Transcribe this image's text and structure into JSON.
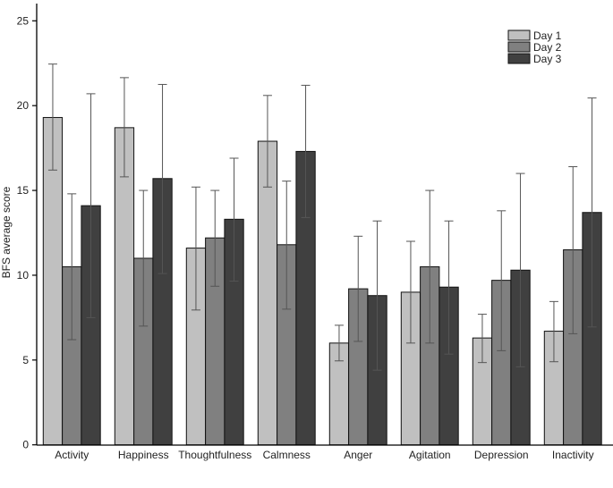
{
  "chart_data": {
    "type": "bar",
    "title": "",
    "xlabel": "",
    "ylabel": "BFS average score",
    "ylim": [
      0,
      25
    ],
    "yticks": [
      "0",
      "5",
      "10",
      "15",
      "20",
      "25"
    ],
    "grid": false,
    "legend_position": "top-right",
    "categories": [
      "Activity",
      "Happiness",
      "Thoughtfulness",
      "Calmness",
      "Anger",
      "Agitation",
      "Depression",
      "Inactivity"
    ],
    "series": [
      {
        "name": "Day 1",
        "color": "#c0c0c0",
        "values": [
          19.3,
          18.7,
          11.6,
          17.9,
          6.0,
          9.0,
          6.3,
          6.7
        ],
        "err_low": [
          16.2,
          15.8,
          7.95,
          15.2,
          4.95,
          6.0,
          4.85,
          4.9
        ],
        "err_high": [
          22.45,
          21.65,
          15.2,
          20.6,
          7.05,
          12.0,
          7.7,
          8.45
        ]
      },
      {
        "name": "Day 2",
        "color": "#808080",
        "values": [
          10.5,
          11.0,
          12.2,
          11.8,
          9.2,
          10.5,
          9.7,
          11.5
        ],
        "err_low": [
          6.2,
          7.0,
          9.35,
          8.0,
          6.1,
          6.0,
          5.55,
          6.55
        ],
        "err_high": [
          14.8,
          15.0,
          15.0,
          15.55,
          12.3,
          15.0,
          13.8,
          16.4
        ]
      },
      {
        "name": "Day 3",
        "color": "#404040",
        "values": [
          14.1,
          15.7,
          13.3,
          17.3,
          8.8,
          9.3,
          10.3,
          13.7
        ],
        "err_low": [
          7.5,
          10.1,
          9.65,
          13.4,
          4.4,
          5.35,
          4.6,
          6.95
        ],
        "err_high": [
          20.7,
          21.25,
          16.9,
          21.2,
          13.2,
          13.2,
          16.0,
          20.45
        ]
      }
    ]
  }
}
